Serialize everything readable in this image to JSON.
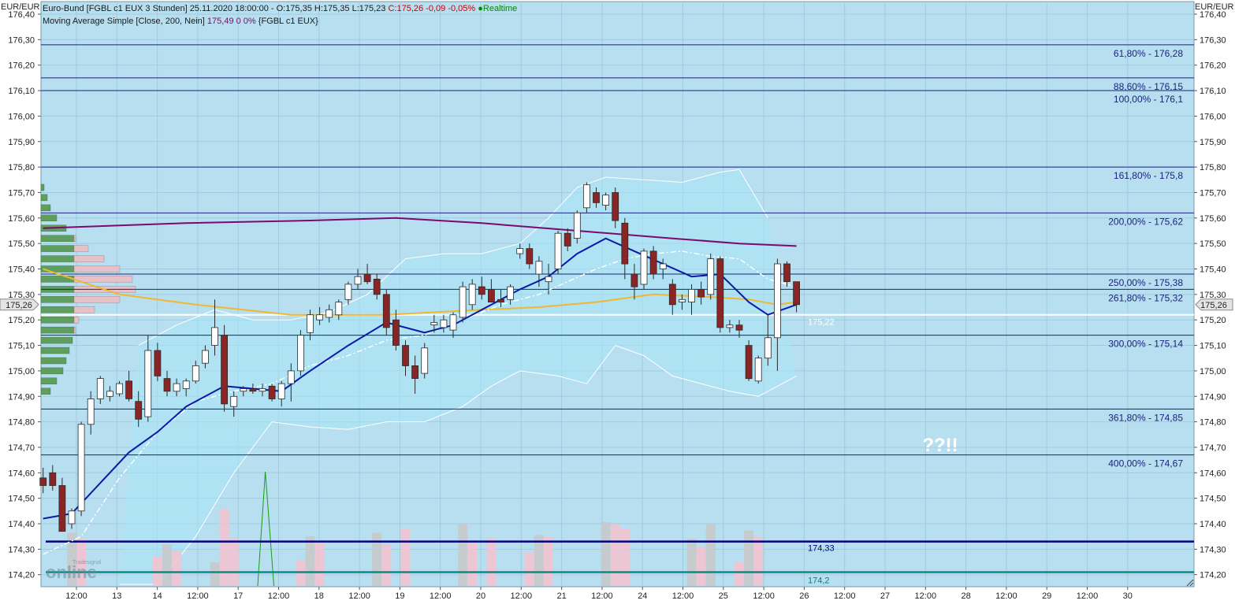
{
  "header": {
    "instrument_line": "Euro-Bund [FGBL c1 EUX 3 Stunden] 25.11.2020 18:00:00 - O:175,35 H:175,35 L:175,23",
    "close_text": "C:175,26 -0,09 -0,05%",
    "realtime_text": "Realtime",
    "ma_line_prefix": "Moving Average Simple [Close, 200, Nein]",
    "ma_line_value": "175,49 0 0%",
    "ma_line_suffix": "{FGBL c1 EUX}"
  },
  "axis": {
    "unit_label": "EUR/EUR",
    "y_ticks": [
      "176,40",
      "176,30",
      "176,20",
      "176,10",
      "176,00",
      "175,90",
      "175,80",
      "175,70",
      "175,60",
      "175,50",
      "175,40",
      "175,30",
      "175,20",
      "175,10",
      "175,00",
      "174,90",
      "174,80",
      "174,70",
      "174,60",
      "174,50",
      "174,40",
      "174,30",
      "174,20"
    ],
    "x_ticks": [
      "12:00",
      "13",
      "14",
      "12:00",
      "17",
      "12:00",
      "18",
      "12:00",
      "19",
      "12:00",
      "20",
      "12:00",
      "21",
      "12:00",
      "24",
      "12:00",
      "25",
      "12:00",
      "26",
      "12:00",
      "27",
      "12:00",
      "28",
      "12:00",
      "29",
      "12:00",
      "30"
    ],
    "last_price_badge": "175,26"
  },
  "annotations": {
    "question_text": "??!!",
    "price_label_main": "175,22",
    "price_label_navy": "174,33",
    "price_label_teal": "174,2"
  },
  "watermark": {
    "brand": "Tradesignal",
    "word": "online"
  },
  "chart_data": {
    "type": "candlestick",
    "title": "Euro-Bund [FGBL c1 EUX 3 Stunden]",
    "ylim": [
      174.15,
      176.4
    ],
    "grid": true,
    "colors": {
      "background": "#b8dff0",
      "up_candle": "#ffffff",
      "down_candle": "#8b2525",
      "ma200": "#7a0a6e",
      "blue_ma": "#0a1aa8",
      "orange_ma": "#f0b830",
      "band": "#a8e4f5",
      "fib_line": "#1a237e",
      "volume_up": "#c8c8c8",
      "volume_down": "#f4c2cc"
    },
    "fibonacci_levels": [
      {
        "label": "61,80% - 176,28",
        "price": 176.28
      },
      {
        "label": "88,60% - 176,15",
        "price": 176.15
      },
      {
        "label": "100,00% - 176,1",
        "price": 176.1
      },
      {
        "label": "161,80% - 175,8",
        "price": 175.8
      },
      {
        "label": "200,00% - 175,62",
        "price": 175.62
      },
      {
        "label": "250,00% - 175,38",
        "price": 175.38
      },
      {
        "label": "261,80% - 175,32",
        "price": 175.32
      },
      {
        "label": "300,00% - 175,14",
        "price": 175.14
      },
      {
        "label": "361,80% - 174,85",
        "price": 174.85
      },
      {
        "label": "400,00% - 174,67",
        "price": 174.67
      }
    ],
    "horizontal_lines": [
      {
        "price": 175.22,
        "color": "#ffffff"
      },
      {
        "price": 174.33,
        "color": "#000080"
      },
      {
        "price": 174.21,
        "color": "#0a8a8a"
      }
    ],
    "candles": [
      {
        "o": 174.58,
        "h": 174.62,
        "l": 174.52,
        "c": 174.55
      },
      {
        "o": 174.6,
        "h": 174.63,
        "l": 174.53,
        "c": 174.55
      },
      {
        "o": 174.55,
        "h": 174.58,
        "l": 174.38,
        "c": 174.37
      },
      {
        "o": 174.4,
        "h": 174.46,
        "l": 174.38,
        "c": 174.45
      },
      {
        "o": 174.45,
        "h": 174.8,
        "l": 174.43,
        "c": 174.79
      },
      {
        "o": 174.79,
        "h": 174.92,
        "l": 174.75,
        "c": 174.89
      },
      {
        "o": 174.89,
        "h": 174.98,
        "l": 174.87,
        "c": 174.97
      },
      {
        "o": 174.9,
        "h": 174.94,
        "l": 174.88,
        "c": 174.92
      },
      {
        "o": 174.91,
        "h": 174.96,
        "l": 174.9,
        "c": 174.95
      },
      {
        "o": 174.96,
        "h": 175.0,
        "l": 174.88,
        "c": 174.89
      },
      {
        "o": 174.88,
        "h": 174.92,
        "l": 174.78,
        "c": 174.81
      },
      {
        "o": 174.82,
        "h": 175.14,
        "l": 174.8,
        "c": 175.08
      },
      {
        "o": 175.08,
        "h": 175.11,
        "l": 174.96,
        "c": 174.98
      },
      {
        "o": 174.97,
        "h": 175.0,
        "l": 174.9,
        "c": 174.92
      },
      {
        "o": 174.92,
        "h": 174.97,
        "l": 174.9,
        "c": 174.95
      },
      {
        "o": 174.93,
        "h": 174.97,
        "l": 174.9,
        "c": 174.96
      },
      {
        "o": 174.96,
        "h": 175.04,
        "l": 174.95,
        "c": 175.02
      },
      {
        "o": 175.03,
        "h": 175.1,
        "l": 175.01,
        "c": 175.08
      },
      {
        "o": 175.1,
        "h": 175.28,
        "l": 175.06,
        "c": 175.17
      },
      {
        "o": 175.14,
        "h": 175.18,
        "l": 174.84,
        "c": 174.87
      },
      {
        "o": 174.86,
        "h": 174.92,
        "l": 174.82,
        "c": 174.9
      },
      {
        "o": 174.92,
        "h": 174.94,
        "l": 174.9,
        "c": 174.93
      },
      {
        "o": 174.93,
        "h": 174.95,
        "l": 174.91,
        "c": 174.92
      },
      {
        "o": 174.92,
        "h": 174.95,
        "l": 174.9,
        "c": 174.93
      },
      {
        "o": 174.94,
        "h": 174.95,
        "l": 174.88,
        "c": 174.89
      },
      {
        "o": 174.89,
        "h": 174.96,
        "l": 174.86,
        "c": 174.95
      },
      {
        "o": 174.95,
        "h": 175.03,
        "l": 174.88,
        "c": 175.0
      },
      {
        "o": 175.0,
        "h": 175.16,
        "l": 174.98,
        "c": 175.14
      },
      {
        "o": 175.15,
        "h": 175.24,
        "l": 175.12,
        "c": 175.22
      },
      {
        "o": 175.2,
        "h": 175.25,
        "l": 175.18,
        "c": 175.22
      },
      {
        "o": 175.21,
        "h": 175.26,
        "l": 175.19,
        "c": 175.24
      },
      {
        "o": 175.22,
        "h": 175.28,
        "l": 175.2,
        "c": 175.27
      },
      {
        "o": 175.28,
        "h": 175.35,
        "l": 175.26,
        "c": 175.34
      },
      {
        "o": 175.34,
        "h": 175.4,
        "l": 175.32,
        "c": 175.37
      },
      {
        "o": 175.38,
        "h": 175.42,
        "l": 175.34,
        "c": 175.35
      },
      {
        "o": 175.36,
        "h": 175.38,
        "l": 175.28,
        "c": 175.3
      },
      {
        "o": 175.3,
        "h": 175.32,
        "l": 175.14,
        "c": 175.17
      },
      {
        "o": 175.2,
        "h": 175.24,
        "l": 175.08,
        "c": 175.1
      },
      {
        "o": 175.1,
        "h": 175.12,
        "l": 174.98,
        "c": 175.02
      },
      {
        "o": 175.02,
        "h": 175.06,
        "l": 174.91,
        "c": 174.97
      },
      {
        "o": 174.99,
        "h": 175.11,
        "l": 174.97,
        "c": 175.09
      },
      {
        "o": 175.18,
        "h": 175.22,
        "l": 175.15,
        "c": 175.19
      },
      {
        "o": 175.17,
        "h": 175.22,
        "l": 175.15,
        "c": 175.2
      },
      {
        "o": 175.16,
        "h": 175.23,
        "l": 175.13,
        "c": 175.22
      },
      {
        "o": 175.21,
        "h": 175.35,
        "l": 175.19,
        "c": 175.33
      },
      {
        "o": 175.26,
        "h": 175.36,
        "l": 175.24,
        "c": 175.34
      },
      {
        "o": 175.33,
        "h": 175.37,
        "l": 175.28,
        "c": 175.3
      },
      {
        "o": 175.32,
        "h": 175.36,
        "l": 175.28,
        "c": 175.27
      },
      {
        "o": 175.28,
        "h": 175.32,
        "l": 175.25,
        "c": 175.27
      },
      {
        "o": 175.28,
        "h": 175.34,
        "l": 175.26,
        "c": 175.33
      },
      {
        "o": 175.46,
        "h": 175.5,
        "l": 175.44,
        "c": 175.48
      },
      {
        "o": 175.48,
        "h": 175.5,
        "l": 175.4,
        "c": 175.42
      },
      {
        "o": 175.38,
        "h": 175.45,
        "l": 175.33,
        "c": 175.43
      },
      {
        "o": 175.35,
        "h": 175.42,
        "l": 175.3,
        "c": 175.37
      },
      {
        "o": 175.4,
        "h": 175.55,
        "l": 175.38,
        "c": 175.54
      },
      {
        "o": 175.54,
        "h": 175.56,
        "l": 175.47,
        "c": 175.49
      },
      {
        "o": 175.52,
        "h": 175.63,
        "l": 175.5,
        "c": 175.62
      },
      {
        "o": 175.64,
        "h": 175.74,
        "l": 175.62,
        "c": 175.73
      },
      {
        "o": 175.7,
        "h": 175.72,
        "l": 175.64,
        "c": 175.66
      },
      {
        "o": 175.65,
        "h": 175.7,
        "l": 175.63,
        "c": 175.69
      },
      {
        "o": 175.7,
        "h": 175.72,
        "l": 175.56,
        "c": 175.59
      },
      {
        "o": 175.58,
        "h": 175.6,
        "l": 175.36,
        "c": 175.42
      },
      {
        "o": 175.38,
        "h": 175.42,
        "l": 175.28,
        "c": 175.33
      },
      {
        "o": 175.34,
        "h": 175.48,
        "l": 175.32,
        "c": 175.47
      },
      {
        "o": 175.47,
        "h": 175.49,
        "l": 175.36,
        "c": 175.38
      },
      {
        "o": 175.4,
        "h": 175.44,
        "l": 175.36,
        "c": 175.42
      },
      {
        "o": 175.34,
        "h": 175.36,
        "l": 175.22,
        "c": 175.26
      },
      {
        "o": 175.27,
        "h": 175.3,
        "l": 175.24,
        "c": 175.28
      },
      {
        "o": 175.27,
        "h": 175.34,
        "l": 175.22,
        "c": 175.32
      },
      {
        "o": 175.32,
        "h": 175.35,
        "l": 175.26,
        "c": 175.29
      },
      {
        "o": 175.3,
        "h": 175.46,
        "l": 175.28,
        "c": 175.44
      },
      {
        "o": 175.44,
        "h": 175.45,
        "l": 175.15,
        "c": 175.17
      },
      {
        "o": 175.17,
        "h": 175.2,
        "l": 175.15,
        "c": 175.18
      },
      {
        "o": 175.18,
        "h": 175.2,
        "l": 175.13,
        "c": 175.16
      },
      {
        "o": 175.1,
        "h": 175.12,
        "l": 174.96,
        "c": 174.97
      },
      {
        "o": 174.96,
        "h": 175.06,
        "l": 174.95,
        "c": 175.05
      },
      {
        "o": 175.05,
        "h": 175.22,
        "l": 175.02,
        "c": 175.13
      },
      {
        "o": 175.13,
        "h": 175.44,
        "l": 175.0,
        "c": 175.42
      },
      {
        "o": 175.42,
        "h": 175.43,
        "l": 175.33,
        "c": 175.35
      },
      {
        "o": 175.35,
        "h": 175.35,
        "l": 175.23,
        "c": 175.26
      }
    ],
    "ma200": [
      [
        0,
        175.56
      ],
      [
        15,
        175.58
      ],
      [
        28,
        175.59
      ],
      [
        37,
        175.6
      ],
      [
        46,
        175.58
      ],
      [
        56,
        175.55
      ],
      [
        66,
        175.52
      ],
      [
        73,
        175.5
      ],
      [
        79,
        175.49
      ]
    ],
    "blue_ma": [
      [
        0,
        174.42
      ],
      [
        3,
        174.44
      ],
      [
        6,
        174.56
      ],
      [
        9,
        174.68
      ],
      [
        12,
        174.76
      ],
      [
        15,
        174.86
      ],
      [
        19,
        174.94
      ],
      [
        22,
        174.93
      ],
      [
        25,
        174.92
      ],
      [
        28,
        175.0
      ],
      [
        32,
        175.1
      ],
      [
        36,
        175.19
      ],
      [
        40,
        175.15
      ],
      [
        43,
        175.18
      ],
      [
        46,
        175.24
      ],
      [
        50,
        175.32
      ],
      [
        53,
        175.37
      ],
      [
        56,
        175.46
      ],
      [
        59,
        175.52
      ],
      [
        62,
        175.47
      ],
      [
        65,
        175.42
      ],
      [
        68,
        175.37
      ],
      [
        71,
        175.38
      ],
      [
        74,
        175.27
      ],
      [
        76,
        175.22
      ],
      [
        79,
        175.26
      ]
    ],
    "dash_ma": [
      [
        0,
        174.28
      ],
      [
        4,
        174.35
      ],
      [
        8,
        174.58
      ],
      [
        12,
        174.76
      ],
      [
        16,
        174.88
      ],
      [
        20,
        174.92
      ],
      [
        24,
        174.95
      ],
      [
        28,
        175.02
      ],
      [
        32,
        175.06
      ],
      [
        36,
        175.12
      ],
      [
        40,
        175.14
      ],
      [
        44,
        175.2
      ],
      [
        48,
        175.26
      ],
      [
        52,
        175.3
      ],
      [
        55,
        175.35
      ],
      [
        58,
        175.4
      ],
      [
        61,
        175.44
      ],
      [
        64,
        175.46
      ],
      [
        67,
        175.47
      ],
      [
        70,
        175.45
      ],
      [
        73,
        175.44
      ],
      [
        76,
        175.36
      ],
      [
        79,
        175.33
      ]
    ],
    "orange_ma": [
      [
        0,
        175.4
      ],
      [
        4,
        175.35
      ],
      [
        8,
        175.3
      ],
      [
        16,
        175.26
      ],
      [
        26,
        175.22
      ],
      [
        36,
        175.22
      ],
      [
        46,
        175.24
      ],
      [
        52,
        175.25
      ],
      [
        58,
        175.27
      ],
      [
        64,
        175.3
      ],
      [
        70,
        175.29
      ],
      [
        74,
        175.28
      ],
      [
        77,
        175.26
      ],
      [
        79,
        175.27
      ]
    ],
    "band_upper": [
      [
        10,
        175.1
      ],
      [
        14,
        175.18
      ],
      [
        18,
        175.24
      ],
      [
        22,
        175.2
      ],
      [
        26,
        175.2
      ],
      [
        30,
        175.23
      ],
      [
        34,
        175.3
      ],
      [
        38,
        175.44
      ],
      [
        42,
        175.46
      ],
      [
        46,
        175.46
      ],
      [
        50,
        175.5
      ],
      [
        53,
        175.6
      ],
      [
        56,
        175.72
      ],
      [
        59,
        175.76
      ],
      [
        63,
        175.75
      ],
      [
        67,
        175.74
      ],
      [
        71,
        175.78
      ],
      [
        73,
        175.79
      ],
      [
        76,
        175.6
      ]
    ],
    "band_lower": [
      [
        8,
        173.95
      ],
      [
        12,
        174.1
      ],
      [
        16,
        174.35
      ],
      [
        20,
        174.6
      ],
      [
        24,
        174.8
      ],
      [
        28,
        174.78
      ],
      [
        32,
        174.77
      ],
      [
        36,
        174.8
      ],
      [
        40,
        174.8
      ],
      [
        44,
        174.86
      ],
      [
        47,
        174.94
      ],
      [
        50,
        175.0
      ],
      [
        54,
        174.98
      ],
      [
        57,
        174.95
      ],
      [
        60,
        175.1
      ],
      [
        63,
        175.06
      ],
      [
        66,
        174.98
      ],
      [
        69,
        174.95
      ],
      [
        72,
        174.92
      ],
      [
        75,
        174.9
      ],
      [
        79,
        174.98
      ]
    ],
    "volume_profile": [
      [
        174.92,
        6
      ],
      [
        174.96,
        10
      ],
      [
        175.0,
        14
      ],
      [
        175.04,
        16
      ],
      [
        175.08,
        18
      ],
      [
        175.12,
        20
      ],
      [
        175.16,
        22
      ],
      [
        175.2,
        24
      ],
      [
        175.24,
        34
      ],
      [
        175.28,
        50
      ],
      [
        175.32,
        60
      ],
      [
        175.36,
        58
      ],
      [
        175.4,
        50
      ],
      [
        175.44,
        40
      ],
      [
        175.48,
        30
      ],
      [
        175.52,
        22
      ],
      [
        175.56,
        16
      ],
      [
        175.6,
        10
      ],
      [
        175.64,
        6
      ],
      [
        175.68,
        4
      ],
      [
        175.72,
        2
      ]
    ],
    "volume_bars": [
      [
        3,
        0.45,
        "up"
      ],
      [
        4,
        0.4,
        "down"
      ],
      [
        12,
        0.25,
        "down"
      ],
      [
        13,
        0.35,
        "up"
      ],
      [
        14,
        0.3,
        "down"
      ],
      [
        18,
        0.2,
        "up"
      ],
      [
        19,
        0.65,
        "down"
      ],
      [
        20,
        0.4,
        "down"
      ],
      [
        27,
        0.22,
        "down"
      ],
      [
        28,
        0.42,
        "up"
      ],
      [
        29,
        0.36,
        "down"
      ],
      [
        35,
        0.45,
        "up"
      ],
      [
        36,
        0.35,
        "down"
      ],
      [
        38,
        0.48,
        "down"
      ],
      [
        44,
        0.52,
        "up"
      ],
      [
        45,
        0.36,
        "down"
      ],
      [
        47,
        0.4,
        "down"
      ],
      [
        51,
        0.28,
        "down"
      ],
      [
        52,
        0.43,
        "up"
      ],
      [
        53,
        0.42,
        "down"
      ],
      [
        59,
        0.54,
        "up"
      ],
      [
        60,
        0.52,
        "down"
      ],
      [
        61,
        0.48,
        "down"
      ],
      [
        68,
        0.4,
        "up"
      ],
      [
        69,
        0.33,
        "down"
      ],
      [
        70,
        0.52,
        "up"
      ],
      [
        73,
        0.2,
        "down"
      ],
      [
        74,
        0.47,
        "up"
      ],
      [
        75,
        0.42,
        "down"
      ]
    ]
  }
}
